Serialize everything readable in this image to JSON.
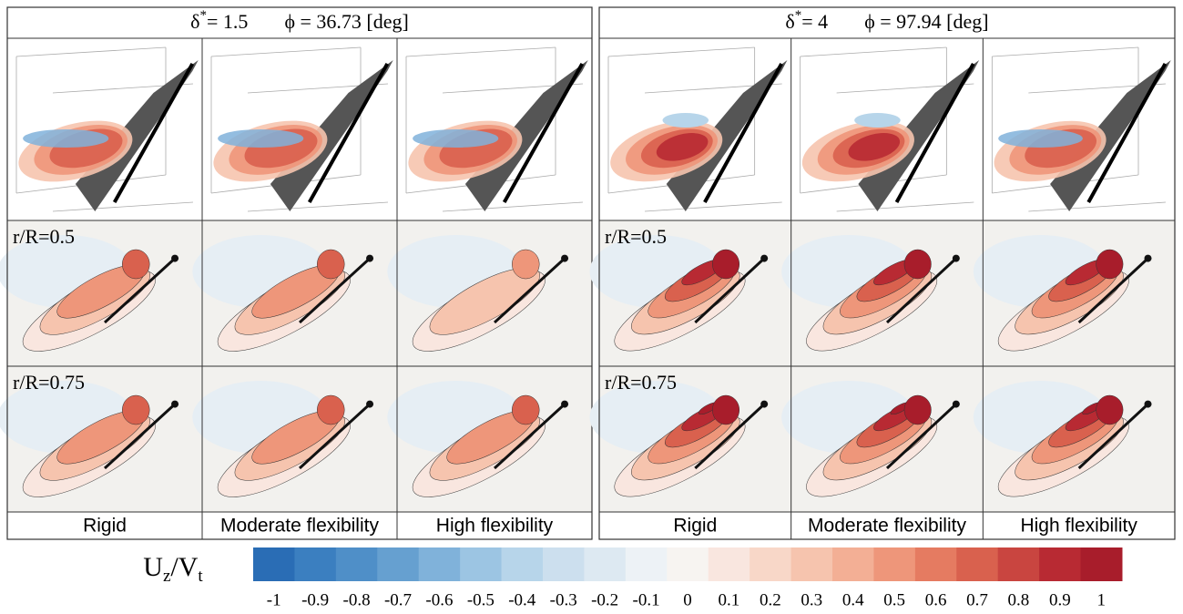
{
  "panels": [
    {
      "delta": "δ",
      "delta_sup": "*",
      "delta_value": "= 1.5",
      "phi": "ϕ = 36.73 [deg]",
      "row_labels": [
        "r/R=0.5",
        "r/R=0.75"
      ],
      "columns": [
        "Rigid",
        "Moderate flexibility",
        "High flexibility"
      ]
    },
    {
      "delta": "δ",
      "delta_sup": "*",
      "delta_value": "= 4",
      "phi": "ϕ = 97.94 [deg]",
      "row_labels": [
        "r/R=0.5",
        "r/R=0.75"
      ],
      "columns": [
        "Rigid",
        "Moderate flexibility",
        "High flexibility"
      ]
    }
  ],
  "colorbar": {
    "label_parts": [
      "U",
      "z",
      "/V",
      "t"
    ],
    "ticks": [
      -1,
      -0.9,
      -0.8,
      -0.7,
      -0.6,
      -0.5,
      -0.4,
      -0.3,
      -0.2,
      -0.1,
      0,
      0.1,
      0.2,
      0.3,
      0.4,
      0.5,
      0.6,
      0.7,
      0.8,
      0.9,
      1
    ],
    "colors": [
      "#2a6db5",
      "#3b7fc0",
      "#4f8fc8",
      "#66a0d0",
      "#80b2da",
      "#9cc5e3",
      "#b7d5ea",
      "#ccdfee",
      "#dde9f2",
      "#edf2f6",
      "#f7f4f1",
      "#f9e6df",
      "#f8d7c8",
      "#f6c4ae",
      "#f3af95",
      "#ee967a",
      "#e57b61",
      "#d9614e",
      "#c94540",
      "#b82a33",
      "#a81d2b"
    ]
  }
}
